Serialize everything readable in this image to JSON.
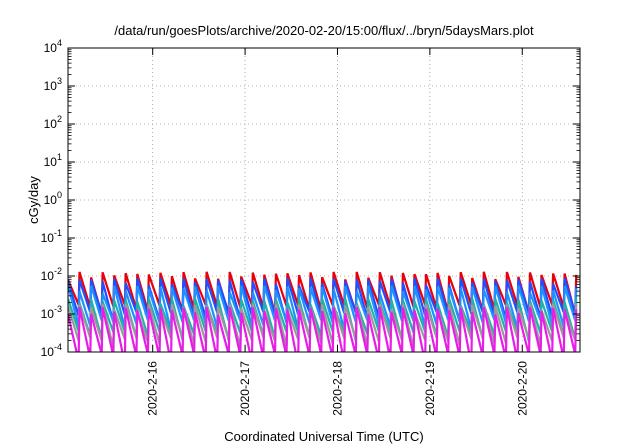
{
  "chart_data": {
    "type": "line",
    "title": "/data/run/goesPlots/archive/2020-02-20/15:00/flux/../bryn/5daysMars.plot",
    "xlabel": "Coordinated Universal Time (UTC)",
    "ylabel": "cGy/day",
    "yscale": "log",
    "ylim": [
      0.0001,
      10000
    ],
    "xlim": [
      "2020-02-15 02:00",
      "2020-02-20 15:00"
    ],
    "grid": true,
    "x_ticks": [
      "2020-2-16",
      "2020-2-17",
      "2020-2-18",
      "2020-2-19",
      "2020-2-20"
    ],
    "y_ticks": [
      {
        "value": 0.0001,
        "base": "10",
        "exp": "-4"
      },
      {
        "value": 0.001,
        "base": "10",
        "exp": "-3"
      },
      {
        "value": 0.01,
        "base": "10",
        "exp": "-2"
      },
      {
        "value": 0.1,
        "base": "10",
        "exp": "-1"
      },
      {
        "value": 1,
        "base": "10",
        "exp": "0"
      },
      {
        "value": 10,
        "base": "10",
        "exp": "1"
      },
      {
        "value": 100,
        "base": "10",
        "exp": "2"
      },
      {
        "value": 1000,
        "base": "10",
        "exp": "3"
      },
      {
        "value": 10000,
        "base": "10",
        "exp": "4"
      }
    ],
    "sawtooth_period_hours": 3,
    "series": [
      {
        "color": "#e8000b",
        "peak": 0.011,
        "trough": 0.0014
      },
      {
        "color": "#1f4fff",
        "peak": 0.0075,
        "trough": 0.0009
      },
      {
        "color": "#1e90ff",
        "peak": 0.0048,
        "trough": 0.00055
      },
      {
        "color": "#20b2aa",
        "peak": 0.0022,
        "trough": 0.00028
      },
      {
        "color": "#9a9a9a",
        "peak": 0.0016,
        "trough": 0.00019
      },
      {
        "color": "#e81ee8",
        "peak": 0.0013,
        "trough": 7e-05
      }
    ]
  }
}
